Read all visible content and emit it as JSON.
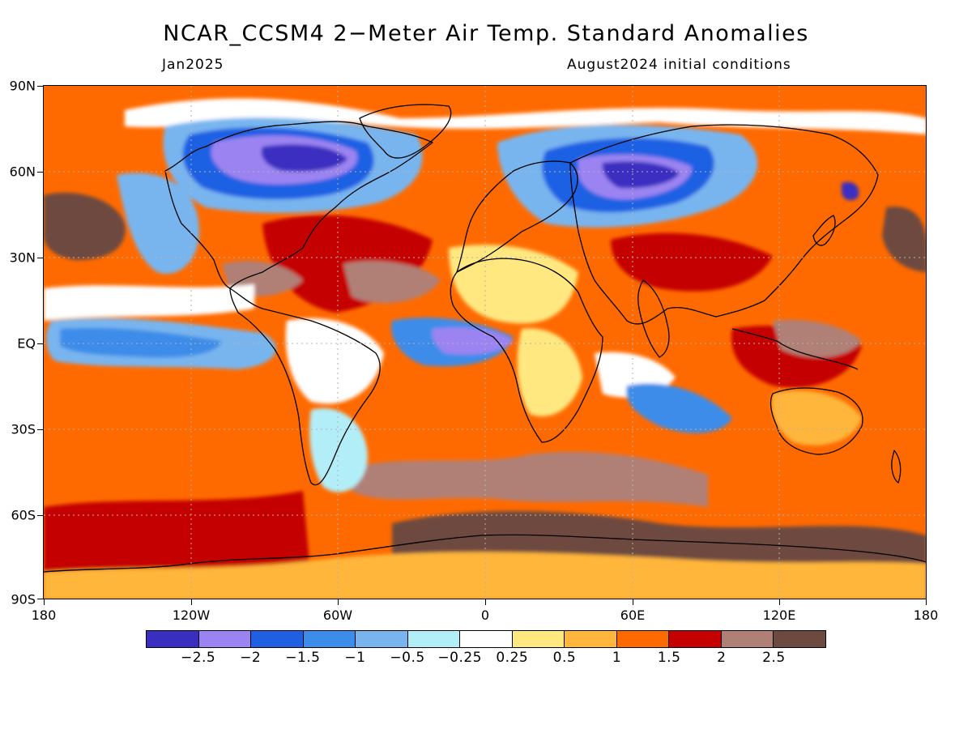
{
  "title": "NCAR_CCSM4 2−Meter Air Temp. Standard Anomalies",
  "subtitle_left": "Jan2025",
  "subtitle_right": "August2024 initial conditions",
  "lat_labels": [
    "90N",
    "60N",
    "30N",
    "EQ",
    "30S",
    "60S",
    "90S"
  ],
  "lon_labels": [
    "180",
    "120W",
    "60W",
    "0",
    "60E",
    "120E",
    "180"
  ],
  "legend": {
    "colors": [
      "#3a2ec0",
      "#9b84f2",
      "#1f60e3",
      "#3c8ce9",
      "#78b5ef",
      "#b2eef7",
      "#ffffff",
      "#ffe880",
      "#ffb63b",
      "#ff6a00",
      "#c40000",
      "#b08077",
      "#6d4a3f"
    ],
    "labels": [
      "−2.5",
      "−2",
      "−1.5",
      "−1",
      "−0.5",
      "−0.25",
      "0.25",
      "0.5",
      "1",
      "1.5",
      "2",
      "2.5"
    ]
  },
  "map": {
    "background_color": "#ff6a00",
    "grid": "dotted",
    "coastlines": "black"
  }
}
